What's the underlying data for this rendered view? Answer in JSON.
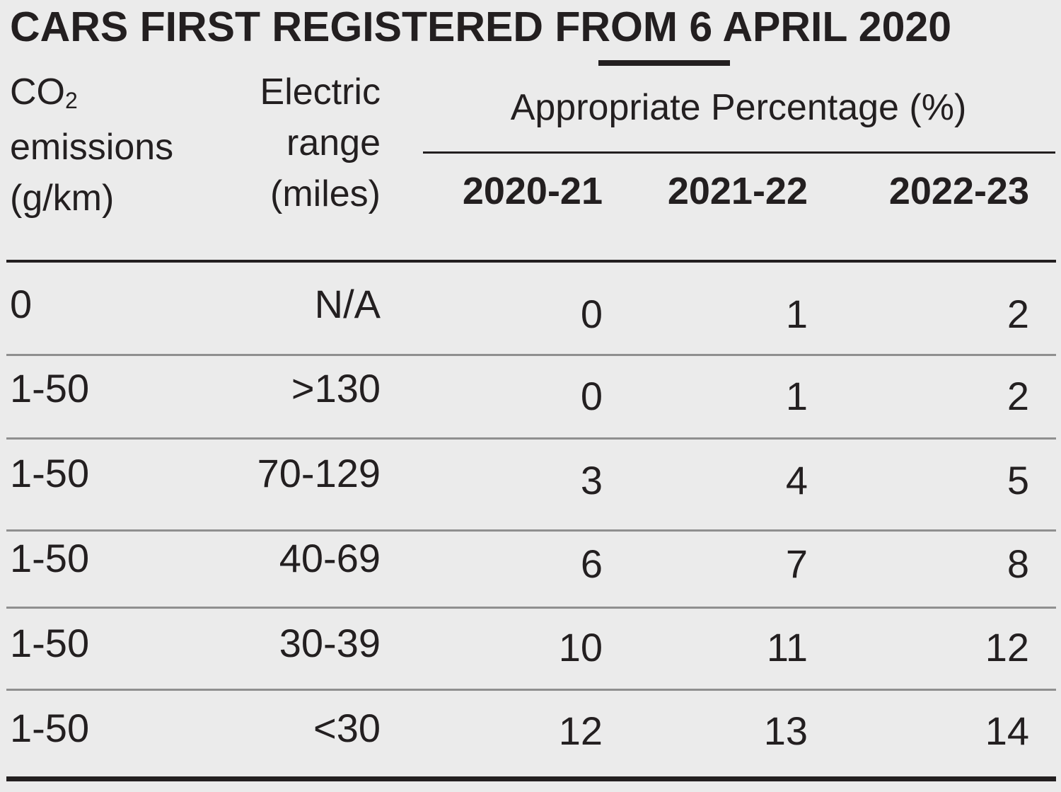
{
  "title": {
    "text_before": "CARS FIRST REGISTERED ",
    "text_underlined": "FROM",
    "text_after": " 6 APRIL 2020"
  },
  "headers": {
    "co2_prefix": "CO",
    "co2_sub": "2",
    "co2_line2": "emissions",
    "co2_line3": "(g/km)",
    "range_line1": "Electric",
    "range_line2": "range",
    "range_line3": "(miles)",
    "percentage": "Appropriate Percentage (%)",
    "years": [
      "2020-21",
      "2021-22",
      "2022-23"
    ]
  },
  "rows": [
    {
      "co2": "0",
      "range": "N/A",
      "y0": "0",
      "y1": "1",
      "y2": "2"
    },
    {
      "co2": "1-50",
      "range": ">130",
      "y0": "0",
      "y1": "1",
      "y2": "2"
    },
    {
      "co2": "1-50",
      "range": "70-129",
      "y0": "3",
      "y1": "4",
      "y2": "5"
    },
    {
      "co2": "1-50",
      "range": "40-69",
      "y0": "6",
      "y1": "7",
      "y2": "8"
    },
    {
      "co2": "1-50",
      "range": "30-39",
      "y0": "10",
      "y1": "11",
      "y2": "12"
    },
    {
      "co2": "1-50",
      "range": "<30",
      "y0": "12",
      "y1": "13",
      "y2": "14"
    }
  ]
}
